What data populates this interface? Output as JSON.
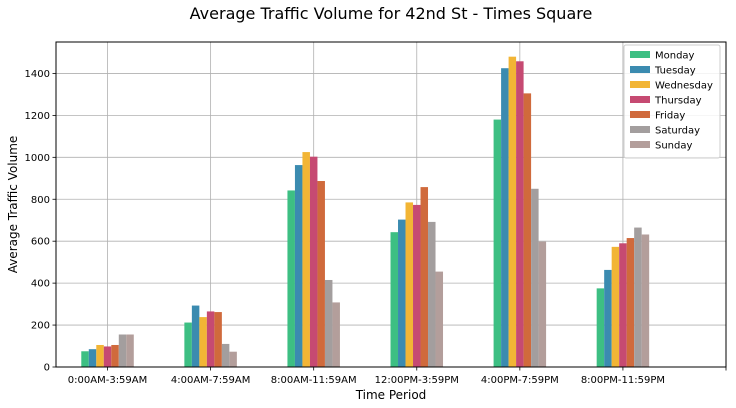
{
  "chart_data": {
    "type": "bar",
    "title": "Average Traffic Volume for 42nd St - Times Square",
    "xlabel": "Time Period",
    "ylabel": "Average Traffic Volume",
    "ylim": [
      0,
      1550
    ],
    "yticks": [
      0,
      200,
      400,
      600,
      800,
      1000,
      1200,
      1400
    ],
    "grid": true,
    "legend_position": "top-right",
    "categories": [
      "0:00AM-3:59AM",
      "4:00AM-7:59AM",
      "8:00AM-11:59AM",
      "12:00PM-3:59PM",
      "4:00PM-7:59PM",
      "8:00PM-11:59PM"
    ],
    "series": [
      {
        "name": "Monday",
        "color": "#3dbf83",
        "values": [
          75,
          212,
          842,
          643,
          1180,
          375
        ]
      },
      {
        "name": "Tuesday",
        "color": "#3b8bb0",
        "values": [
          85,
          293,
          963,
          703,
          1425,
          463
        ]
      },
      {
        "name": "Wednesday",
        "color": "#f2b535",
        "values": [
          105,
          238,
          1025,
          785,
          1480,
          573
        ]
      },
      {
        "name": "Thursday",
        "color": "#c64a72",
        "values": [
          98,
          265,
          1003,
          773,
          1458,
          590
        ]
      },
      {
        "name": "Friday",
        "color": "#d06a3c",
        "values": [
          105,
          262,
          887,
          858,
          1305,
          615
        ]
      },
      {
        "name": "Saturday",
        "color": "#a39e9e",
        "values": [
          155,
          110,
          415,
          692,
          850,
          665
        ]
      },
      {
        "name": "Sunday",
        "color": "#b39e9b",
        "values": [
          155,
          73,
          308,
          455,
          598,
          632
        ]
      }
    ]
  }
}
